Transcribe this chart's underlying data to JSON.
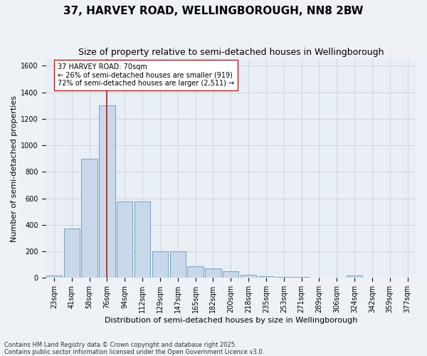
{
  "title": "37, HARVEY ROAD, WELLINGBOROUGH, NN8 2BW",
  "subtitle": "Size of property relative to semi-detached houses in Wellingborough",
  "xlabel": "Distribution of semi-detached houses by size in Wellingborough",
  "ylabel": "Number of semi-detached properties",
  "footer_line1": "Contains HM Land Registry data © Crown copyright and database right 2025.",
  "footer_line2": "Contains public sector information licensed under the Open Government Licence v3.0.",
  "bin_labels": [
    "23sqm",
    "41sqm",
    "58sqm",
    "76sqm",
    "94sqm",
    "112sqm",
    "129sqm",
    "147sqm",
    "165sqm",
    "182sqm",
    "200sqm",
    "218sqm",
    "235sqm",
    "253sqm",
    "271sqm",
    "289sqm",
    "306sqm",
    "324sqm",
    "342sqm",
    "359sqm",
    "377sqm"
  ],
  "bar_values": [
    20,
    375,
    900,
    1300,
    575,
    575,
    200,
    200,
    90,
    70,
    50,
    25,
    15,
    5,
    5,
    0,
    0,
    20,
    0,
    0,
    0
  ],
  "bar_color": "#c8d8ea",
  "bar_edge_color": "#6699bb",
  "vline_x_bin": 3,
  "vline_color": "#aa2222",
  "annotation_text": "37 HARVEY ROAD: 70sqm\n← 26% of semi-detached houses are smaller (919)\n72% of semi-detached houses are larger (2,511) →",
  "annotation_box_color": "#ffffff",
  "annotation_box_edge": "#aa2222",
  "ylim": [
    0,
    1650
  ],
  "yticks": [
    0,
    200,
    400,
    600,
    800,
    1000,
    1200,
    1400,
    1600
  ],
  "grid_color": "#cccccc",
  "bg_color": "#e8eef5",
  "fig_bg_color": "#eef2f7",
  "title_fontsize": 11,
  "subtitle_fontsize": 9,
  "xlabel_fontsize": 8,
  "ylabel_fontsize": 8,
  "tick_fontsize": 7,
  "annotation_fontsize": 7,
  "footer_fontsize": 6
}
